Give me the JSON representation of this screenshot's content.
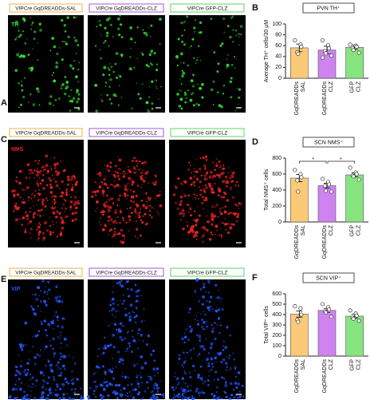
{
  "image_panels": [
    {
      "panel": "A",
      "stain": "TH",
      "stain_color": "#33dd33",
      "labels": [
        {
          "prefix": "VIP",
          "italic": "Cre",
          "suffix": " GqDREADDs-SAL",
          "color": "#f5b041"
        },
        {
          "prefix": "VIP",
          "italic": "Cre",
          "suffix": " GqDREADDs-CLZ",
          "color": "#a259d9"
        },
        {
          "prefix": "VIP",
          "italic": "Cre",
          "suffix": " GFP-CLZ",
          "color": "#5cd65c"
        }
      ]
    },
    {
      "panel": "C",
      "stain": "NMS",
      "stain_color": "#ee2222",
      "labels": [
        {
          "prefix": "VIP",
          "italic": "Cre",
          "suffix": " GqDREADDs-SAL",
          "color": "#f5b041"
        },
        {
          "prefix": "VIP",
          "italic": "Cre",
          "suffix": " GqDREADDs-CLZ",
          "color": "#a259d9"
        },
        {
          "prefix": "VIP",
          "italic": "Cre",
          "suffix": " GFP-CLZ",
          "color": "#5cd65c"
        }
      ]
    },
    {
      "panel": "E",
      "stain": "VIP",
      "stain_color": "#2255ff",
      "labels": [
        {
          "prefix": "VIP",
          "italic": "Cre",
          "suffix": " GqDREADDs-SAL",
          "color": "#f5b041"
        },
        {
          "prefix": "VIP",
          "italic": "Cre",
          "suffix": " GqDREADDs-CLZ",
          "color": "#a259d9"
        },
        {
          "prefix": "VIP",
          "italic": "Cre",
          "suffix": " GFP-CLZ",
          "color": "#5cd65c"
        }
      ]
    }
  ],
  "chart_data": [
    {
      "type": "bar",
      "panel": "B",
      "title": "PVN TH⁺",
      "ylabel": "Average TH⁺ cells/30 μM",
      "categories": [
        [
          "GqDREADDs",
          "SAL"
        ],
        [
          "GqDREADDs",
          "CLZ"
        ],
        [
          "GFP",
          "CLZ"
        ]
      ],
      "values": [
        56,
        52,
        57
      ],
      "errors": [
        7,
        7,
        4
      ],
      "points": [
        [
          70,
          62,
          58,
          48,
          45
        ],
        [
          70,
          61,
          55,
          50,
          46,
          42,
          38
        ],
        [
          62,
          60,
          58,
          55,
          52,
          47
        ]
      ],
      "colors": [
        "#fcc977",
        "#cf83ef",
        "#86e57f"
      ],
      "ylim": [
        0,
        100
      ],
      "yticks": [
        0,
        20,
        40,
        60,
        80,
        100
      ]
    },
    {
      "type": "bar",
      "panel": "D",
      "title": "SCN NMS⁺",
      "ylabel": "Total NMS⁺ cells",
      "categories": [
        [
          "GqDREADDs",
          "SAL"
        ],
        [
          "GqDREADDs",
          "CLZ"
        ],
        [
          "GFP",
          "CLZ"
        ]
      ],
      "values": [
        550,
        455,
        590
      ],
      "errors": [
        45,
        30,
        25
      ],
      "points": [
        [
          650,
          600,
          560,
          520,
          380
        ],
        [
          540,
          500,
          470,
          450,
          390,
          380
        ],
        [
          680,
          620,
          600,
          580,
          570,
          530
        ]
      ],
      "colors": [
        "#fcc977",
        "#cf83ef",
        "#86e57f"
      ],
      "ylim": [
        0,
        800
      ],
      "yticks": [
        0,
        200,
        400,
        600,
        800
      ],
      "significance": [
        {
          "label": "*",
          "groups": [
            0,
            1
          ]
        },
        {
          "label": "*",
          "groups": [
            1,
            2
          ]
        }
      ]
    },
    {
      "type": "bar",
      "panel": "F",
      "title": "SCN VIP⁺",
      "ylabel": "Total VIP⁺ cells",
      "categories": [
        [
          "GqDREADDs",
          "SAL"
        ],
        [
          "GqDREADDs",
          "CLZ"
        ],
        [
          "GFP",
          "CLZ"
        ]
      ],
      "values": [
        405,
        440,
        385
      ],
      "errors": [
        30,
        20,
        18
      ],
      "points": [
        [
          480,
          460,
          400,
          350,
          330
        ],
        [
          500,
          470,
          450,
          430,
          420,
          380
        ],
        [
          440,
          410,
          390,
          370,
          360,
          340
        ]
      ],
      "colors": [
        "#fcc977",
        "#cf83ef",
        "#86e57f"
      ],
      "ylim": [
        0,
        600
      ],
      "yticks": [
        0,
        100,
        200,
        300,
        400,
        500,
        600
      ]
    }
  ]
}
